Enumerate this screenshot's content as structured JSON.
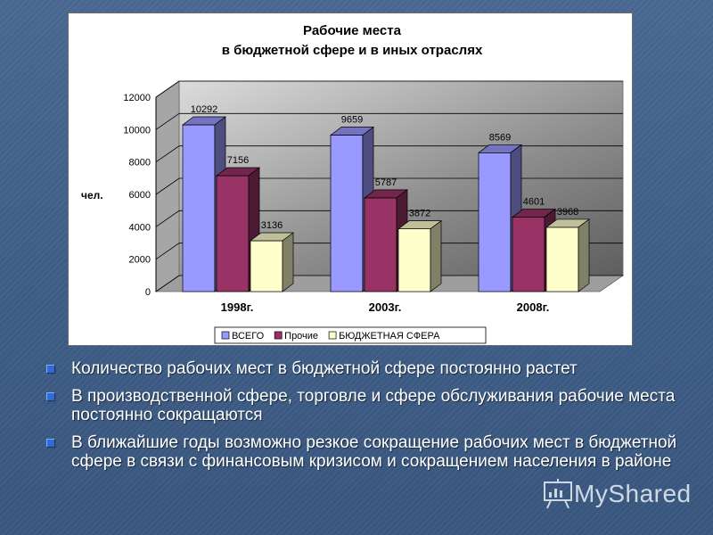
{
  "chart_data": {
    "type": "bar",
    "title_lines": [
      "Рабочие места",
      "в бюджетной сфере и в иных отраслях"
    ],
    "ylabel": "чел.",
    "categories": [
      "1998г.",
      "2003г.",
      "2008г."
    ],
    "yticks": [
      "0",
      "2000",
      "4000",
      "6000",
      "8000",
      "10000",
      "12000"
    ],
    "ylim": [
      0,
      12000
    ],
    "grid": true,
    "three_d": true,
    "legend_position": "bottom",
    "series": [
      {
        "name": "ВСЕГО",
        "values": [
          10292,
          9659,
          8569
        ],
        "color": "#9999ff",
        "labels": [
          "10292",
          "9659",
          "8569"
        ]
      },
      {
        "name": "Прочие",
        "values": [
          7156,
          5787,
          4601
        ],
        "color": "#993366",
        "labels": [
          "7156",
          "5787",
          "4601"
        ]
      },
      {
        "name": "БЮДЖЕТНАЯ СФЕРА",
        "values": [
          3136,
          3872,
          3968
        ],
        "color": "#ffffcc",
        "labels": [
          "3136",
          "3872",
          "3968"
        ]
      }
    ]
  },
  "bullets": [
    "Количество рабочих мест в бюджетной сфере постоянно растет",
    "В производственной сфере, торговле и сфере обслуживания рабочие места постоянно сокращаются",
    "В ближайшие годы возможно резкое сокращение рабочих мест в бюджетной сфере в связи с финансовым кризисом и сокращением населения в районе"
  ],
  "logo": {
    "text": "MyShared",
    "icon": "presentation-board-icon"
  }
}
